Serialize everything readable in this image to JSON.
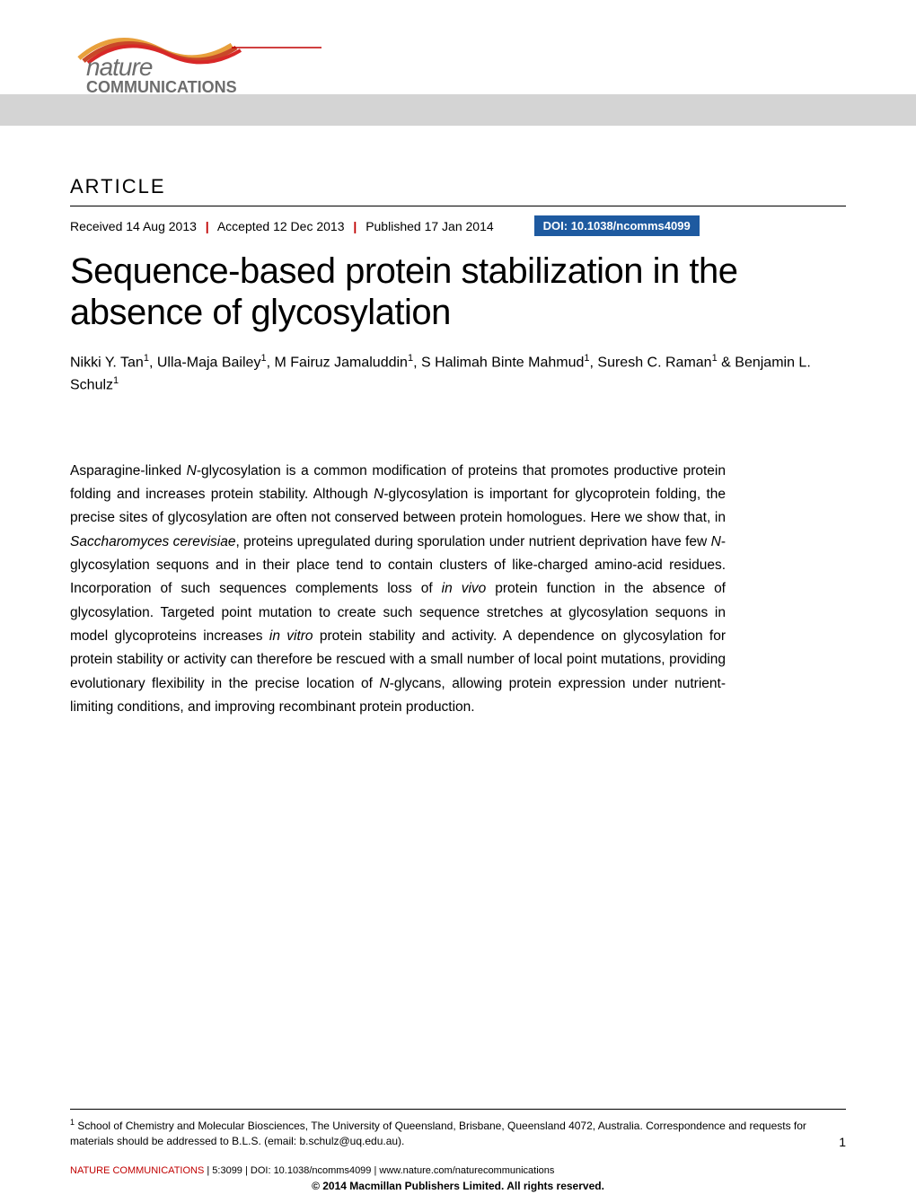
{
  "banner": {
    "logo_nature": "nature",
    "logo_communications": "COMMUNICATIONS",
    "banner_bg_color": "#d4d4d4",
    "swoosh_colors": [
      "#e8a03c",
      "#c84828",
      "#d82828"
    ],
    "swoosh_line_color": "#c00000"
  },
  "article": {
    "label": "ARTICLE",
    "received": "Received 14 Aug 2013",
    "accepted": "Accepted 12 Dec 2013",
    "published": "Published 17 Jan 2014",
    "doi": "DOI: 10.1038/ncomms4099",
    "title": "Sequence-based protein stabilization in the absence of glycosylation",
    "authors_html": "Nikki Y. Tan<sup>1</sup>, Ulla-Maja Bailey<sup>1</sup>, M Fairuz Jamaluddin<sup>1</sup>, S Halimah Binte Mahmud<sup>1</sup>, Suresh C. Raman<sup>1</sup> & Benjamin L. Schulz<sup>1</sup>",
    "abstract_html": "Asparagine-linked <em>N</em>-glycosylation is a common modification of proteins that promotes productive protein folding and increases protein stability. Although <em>N</em>-glycosylation is important for glycoprotein folding, the precise sites of glycosylation are often not conserved between protein homologues. Here we show that, in <em>Saccharomyces cerevisiae</em>, proteins upregulated during sporulation under nutrient deprivation have few <em>N</em>-glycosylation sequons and in their place tend to contain clusters of like-charged amino-acid residues. Incorporation of such sequences complements loss of <em>in vivo</em> protein function in the absence of glycosylation. Targeted point mutation to create such sequence stretches at glycosylation sequons in model glycoproteins increases <em>in vitro</em> protein stability and activity. A dependence on glycosylation for protein stability or activity can therefore be rescued with a small number of local point mutations, providing evolutionary flexibility in the precise location of <em>N</em>-glycans, allowing protein expression under nutrient-limiting conditions, and improving recombinant protein production."
  },
  "footer": {
    "affiliations_html": "<sup>1</sup> School of Chemistry and Molecular Biosciences, The University of Queensland, Brisbane, Queensland 4072, Australia. Correspondence and requests for materials should be addressed to B.L.S. (email: b.schulz@uq.edu.au).",
    "citation_journal": "NATURE COMMUNICATIONS",
    "citation_details": " | 5:3099 | DOI: 10.1038/ncomms4099 | www.nature.com/naturecommunications",
    "page_number": "1",
    "copyright": "© 2014 Macmillan Publishers Limited. All rights reserved."
  },
  "colors": {
    "doi_badge_bg": "#1e5aa0",
    "accent_red": "#c00000",
    "logo_gray": "#6d6d6d",
    "text_black": "#000000"
  },
  "typography": {
    "title_fontsize": 40,
    "article_label_fontsize": 22,
    "meta_fontsize": 14,
    "authors_fontsize": 16,
    "abstract_fontsize": 15.5,
    "footer_fontsize": 12
  }
}
